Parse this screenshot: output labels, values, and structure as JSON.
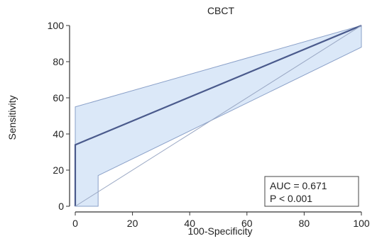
{
  "chart_data": {
    "type": "line",
    "title": "CBCT",
    "xlabel": "100-Specificity",
    "ylabel": "Sensitivity",
    "xlim": [
      0,
      100
    ],
    "ylim": [
      0,
      100
    ],
    "x_ticks": [
      0,
      20,
      40,
      60,
      80,
      100
    ],
    "y_ticks": [
      0,
      20,
      40,
      60,
      80,
      100
    ],
    "grid": false,
    "series": [
      {
        "role": "roc-curve",
        "color": "#4a5a8c",
        "points": [
          [
            0,
            0
          ],
          [
            0,
            34
          ],
          [
            100,
            100
          ]
        ]
      },
      {
        "role": "reference-diagonal",
        "color": "#9aa8c4",
        "points": [
          [
            0,
            0
          ],
          [
            100,
            100
          ]
        ]
      }
    ],
    "confidence_band": {
      "fill": "#dbe8f8",
      "stroke": "#8aa0c8",
      "upper": [
        [
          0,
          0
        ],
        [
          0,
          55
        ],
        [
          100,
          100
        ]
      ],
      "lower": [
        [
          100,
          100
        ],
        [
          100,
          88
        ],
        [
          8,
          17
        ],
        [
          8,
          0
        ],
        [
          0,
          0
        ]
      ]
    },
    "annotation": {
      "lines": [
        "AUC = 0.671",
        "P < 0.001"
      ],
      "placement": "bottom-right"
    }
  }
}
